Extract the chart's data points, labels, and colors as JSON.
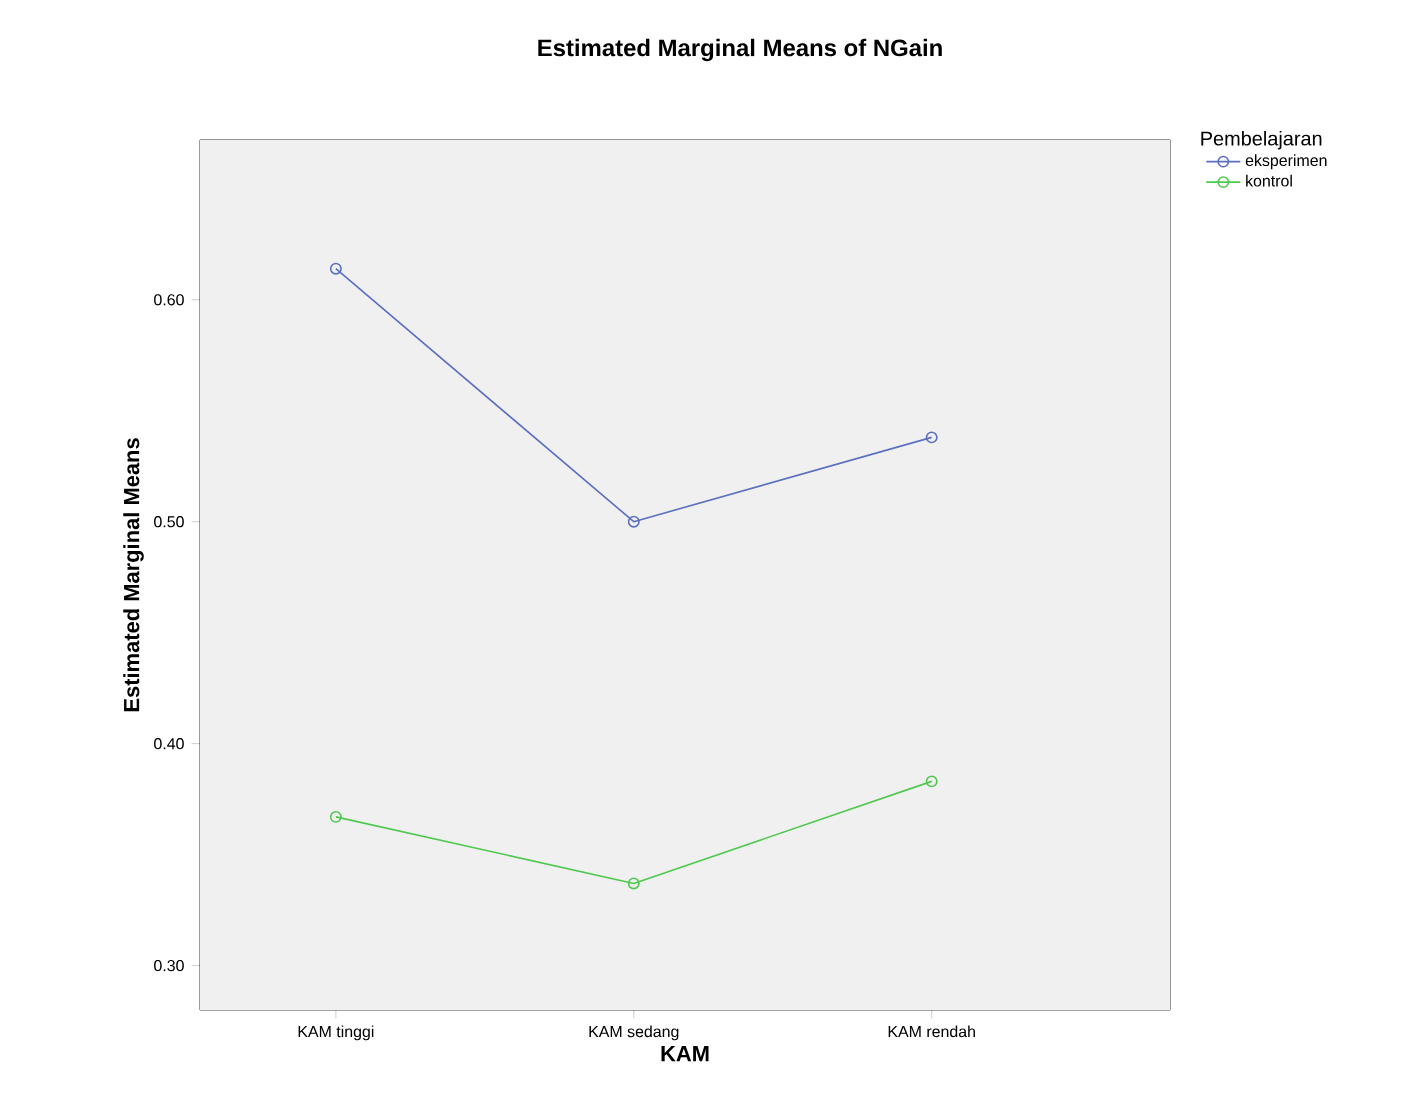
{
  "chart_data": {
    "type": "line",
    "title": "Estimated Marginal Means of NGain",
    "xlabel": "KAM",
    "ylabel": "Estimated Marginal Means",
    "legend_title": "Pembelajaran",
    "categories": [
      "KAM tinggi",
      "KAM sedang",
      "KAM rendah"
    ],
    "series": [
      {
        "name": "eksperimen",
        "color": "#5a6fc0",
        "values": [
          0.614,
          0.5,
          0.538
        ]
      },
      {
        "name": "kontrol",
        "color": "#4fc84f",
        "values": [
          0.367,
          0.337,
          0.383
        ]
      }
    ],
    "ylim": [
      0.28,
      0.672
    ],
    "yticks": [
      {
        "value": 0.3,
        "label": "0.30"
      },
      {
        "value": 0.4,
        "label": "0.40"
      },
      {
        "value": 0.5,
        "label": "0.50"
      },
      {
        "value": 0.6,
        "label": "0.60"
      }
    ],
    "marker": "circle",
    "line_style": "solid",
    "legend": "top right"
  }
}
